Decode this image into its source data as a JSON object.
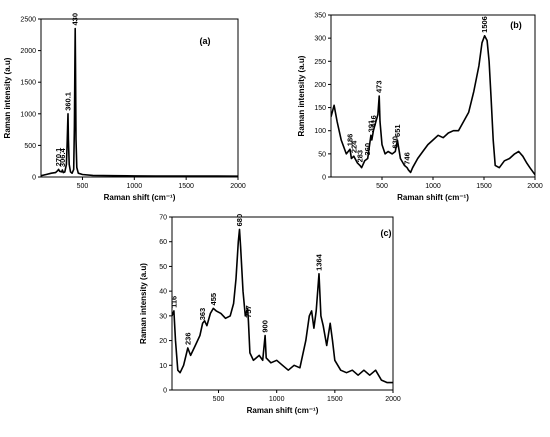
{
  "chart_data": [
    {
      "id": "a",
      "type": "line",
      "panel_label": "(a)",
      "xlabel": "Raman shift (cm⁻¹)",
      "ylabel": "Raman intensity (a.u)",
      "xlim": [
        100,
        2000
      ],
      "ylim": [
        0,
        2500
      ],
      "xticks": [
        "500",
        "1000",
        "1500",
        "2000"
      ],
      "xtick_values": [
        500,
        1000,
        1500,
        2000
      ],
      "yticks": [
        "0",
        "500",
        "1000",
        "1500",
        "2000",
        "2500"
      ],
      "ytick_values": [
        0,
        500,
        1000,
        1500,
        2000,
        2500
      ],
      "grid": false,
      "series": [
        {
          "points": [
            [
              100,
              20
            ],
            [
              150,
              40
            ],
            [
              200,
              60
            ],
            [
              240,
              70
            ],
            [
              260,
              100
            ],
            [
              270,
              120
            ],
            [
              280,
              90
            ],
            [
              300,
              80
            ],
            [
              306,
              110
            ],
            [
              315,
              70
            ],
            [
              330,
              80
            ],
            [
              345,
              200
            ],
            [
              352,
              500
            ],
            [
              358,
              900
            ],
            [
              360,
              1000
            ],
            [
              364,
              600
            ],
            [
              372,
              200
            ],
            [
              385,
              80
            ],
            [
              400,
              60
            ],
            [
              415,
              120
            ],
            [
              422,
              800
            ],
            [
              427,
              1800
            ],
            [
              430,
              2350
            ],
            [
              433,
              1800
            ],
            [
              438,
              600
            ],
            [
              445,
              150
            ],
            [
              460,
              60
            ],
            [
              500,
              40
            ],
            [
              600,
              25
            ],
            [
              800,
              20
            ],
            [
              1000,
              18
            ],
            [
              1200,
              16
            ],
            [
              1500,
              15
            ],
            [
              1800,
              14
            ],
            [
              2000,
              12
            ]
          ]
        }
      ],
      "peaks": [
        {
          "label": "270.1",
          "x": 270,
          "y": 120
        },
        {
          "label": "306.4",
          "x": 306,
          "y": 110
        },
        {
          "label": "360.1",
          "x": 360,
          "y": 1000
        },
        {
          "label": "430",
          "x": 430,
          "y": 2350
        }
      ]
    },
    {
      "id": "b",
      "type": "line",
      "panel_label": "(b)",
      "xlabel": "Raman shift (cm⁻¹)",
      "ylabel": "Raman intensity (a.u)",
      "xlim": [
        0,
        2000
      ],
      "ylim": [
        0,
        350
      ],
      "xticks": [
        "500",
        "1000",
        "1500",
        "2000"
      ],
      "xtick_values": [
        500,
        1000,
        1500,
        2000
      ],
      "yticks": [
        "0",
        "50",
        "100",
        "150",
        "200",
        "250",
        "300",
        "350"
      ],
      "ytick_values": [
        0,
        50,
        100,
        150,
        200,
        250,
        300,
        350
      ],
      "grid": false,
      "series": [
        {
          "points": [
            [
              0,
              130
            ],
            [
              30,
              155
            ],
            [
              60,
              120
            ],
            [
              100,
              80
            ],
            [
              150,
              50
            ],
            [
              186,
              60
            ],
            [
              200,
              40
            ],
            [
              224,
              45
            ],
            [
              260,
              30
            ],
            [
              283,
              25
            ],
            [
              300,
              20
            ],
            [
              330,
              35
            ],
            [
              360,
              40
            ],
            [
              391,
              90
            ],
            [
              400,
              80
            ],
            [
              416,
              100
            ],
            [
              440,
              120
            ],
            [
              460,
              135
            ],
            [
              473,
              175
            ],
            [
              480,
              120
            ],
            [
              500,
              70
            ],
            [
              530,
              50
            ],
            [
              560,
              55
            ],
            [
              600,
              50
            ],
            [
              630,
              55
            ],
            [
              651,
              80
            ],
            [
              680,
              40
            ],
            [
              720,
              25
            ],
            [
              746,
              20
            ],
            [
              760,
              15
            ],
            [
              780,
              10
            ],
            [
              800,
              20
            ],
            [
              850,
              40
            ],
            [
              900,
              55
            ],
            [
              950,
              70
            ],
            [
              1000,
              80
            ],
            [
              1050,
              90
            ],
            [
              1100,
              85
            ],
            [
              1150,
              95
            ],
            [
              1200,
              100
            ],
            [
              1250,
              100
            ],
            [
              1300,
              120
            ],
            [
              1350,
              140
            ],
            [
              1400,
              185
            ],
            [
              1450,
              240
            ],
            [
              1480,
              290
            ],
            [
              1506,
              305
            ],
            [
              1530,
              295
            ],
            [
              1550,
              250
            ],
            [
              1570,
              170
            ],
            [
              1590,
              80
            ],
            [
              1610,
              25
            ],
            [
              1650,
              20
            ],
            [
              1700,
              35
            ],
            [
              1750,
              40
            ],
            [
              1800,
              50
            ],
            [
              1840,
              55
            ],
            [
              1880,
              45
            ],
            [
              1920,
              30
            ],
            [
              1950,
              20
            ],
            [
              2000,
              5
            ]
          ]
        }
      ],
      "peaks": [
        {
          "label": "186",
          "x": 186,
          "y": 60
        },
        {
          "label": "224",
          "x": 224,
          "y": 45
        },
        {
          "label": "283",
          "x": 283,
          "y": 25
        },
        {
          "label": "360",
          "x": 360,
          "y": 40
        },
        {
          "label": "391",
          "x": 391,
          "y": 90
        },
        {
          "label": "416",
          "x": 416,
          "y": 100
        },
        {
          "label": "473",
          "x": 473,
          "y": 175
        },
        {
          "label": "630",
          "x": 630,
          "y": 55
        },
        {
          "label": "651",
          "x": 651,
          "y": 80
        },
        {
          "label": "746",
          "x": 746,
          "y": 20
        },
        {
          "label": "1506",
          "x": 1506,
          "y": 305
        }
      ]
    },
    {
      "id": "c",
      "type": "line",
      "panel_label": "(c)",
      "xlabel": "Raman shift (cm⁻¹)",
      "ylabel": "Raman intensity (a.u)",
      "xlim": [
        100,
        2000
      ],
      "ylim": [
        0,
        70
      ],
      "xticks": [
        "500",
        "1000",
        "1500",
        "2000"
      ],
      "xtick_values": [
        500,
        1000,
        1500,
        2000
      ],
      "yticks": [
        "0",
        "10",
        "20",
        "30",
        "40",
        "50",
        "60",
        "70"
      ],
      "ytick_values": [
        0,
        10,
        20,
        30,
        40,
        50,
        60,
        70
      ],
      "grid": false,
      "series": [
        {
          "points": [
            [
              100,
              30
            ],
            [
              116,
              32
            ],
            [
              130,
              20
            ],
            [
              150,
              8
            ],
            [
              170,
              7
            ],
            [
              200,
              10
            ],
            [
              236,
              17
            ],
            [
              260,
              14
            ],
            [
              300,
              18
            ],
            [
              340,
              22
            ],
            [
              363,
              27
            ],
            [
              380,
              28
            ],
            [
              400,
              26
            ],
            [
              430,
              31
            ],
            [
              455,
              33
            ],
            [
              480,
              32
            ],
            [
              520,
              31
            ],
            [
              560,
              29
            ],
            [
              600,
              30
            ],
            [
              630,
              35
            ],
            [
              650,
              45
            ],
            [
              670,
              60
            ],
            [
              680,
              65
            ],
            [
              690,
              58
            ],
            [
              710,
              40
            ],
            [
              730,
              30
            ],
            [
              750,
              33
            ],
            [
              757,
              28
            ],
            [
              770,
              15
            ],
            [
              800,
              12
            ],
            [
              850,
              14
            ],
            [
              880,
              12
            ],
            [
              900,
              22
            ],
            [
              910,
              13
            ],
            [
              950,
              11
            ],
            [
              1000,
              12
            ],
            [
              1050,
              10
            ],
            [
              1100,
              8
            ],
            [
              1150,
              10
            ],
            [
              1200,
              9
            ],
            [
              1250,
              20
            ],
            [
              1280,
              30
            ],
            [
              1300,
              32
            ],
            [
              1320,
              25
            ],
            [
              1340,
              32
            ],
            [
              1364,
              47
            ],
            [
              1380,
              30
            ],
            [
              1400,
              26
            ],
            [
              1430,
              18
            ],
            [
              1460,
              27
            ],
            [
              1480,
              20
            ],
            [
              1500,
              12
            ],
            [
              1550,
              8
            ],
            [
              1600,
              7
            ],
            [
              1650,
              8
            ],
            [
              1700,
              6
            ],
            [
              1750,
              8
            ],
            [
              1800,
              6
            ],
            [
              1850,
              8
            ],
            [
              1900,
              4
            ],
            [
              1950,
              3
            ],
            [
              2000,
              3
            ]
          ]
        }
      ],
      "peaks": [
        {
          "label": "116",
          "x": 116,
          "y": 32
        },
        {
          "label": "236",
          "x": 236,
          "y": 17
        },
        {
          "label": "363",
          "x": 363,
          "y": 27
        },
        {
          "label": "455",
          "x": 455,
          "y": 33
        },
        {
          "label": "680",
          "x": 680,
          "y": 65
        },
        {
          "label": "757",
          "x": 757,
          "y": 28
        },
        {
          "label": "900",
          "x": 900,
          "y": 22
        },
        {
          "label": "1364",
          "x": 1364,
          "y": 47
        }
      ]
    }
  ]
}
